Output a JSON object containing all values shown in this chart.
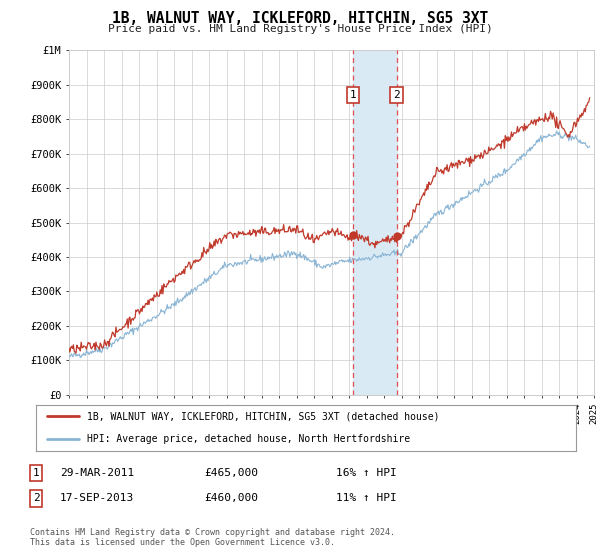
{
  "title": "1B, WALNUT WAY, ICKLEFORD, HITCHIN, SG5 3XT",
  "subtitle": "Price paid vs. HM Land Registry's House Price Index (HPI)",
  "legend_line1": "1B, WALNUT WAY, ICKLEFORD, HITCHIN, SG5 3XT (detached house)",
  "legend_line2": "HPI: Average price, detached house, North Hertfordshire",
  "sale1_date": "29-MAR-2011",
  "sale1_price": "£465,000",
  "sale1_hpi": "16% ↑ HPI",
  "sale2_date": "17-SEP-2013",
  "sale2_price": "£460,000",
  "sale2_hpi": "11% ↑ HPI",
  "footnote": "Contains HM Land Registry data © Crown copyright and database right 2024.\nThis data is licensed under the Open Government Licence v3.0.",
  "sale1_year": 2011.23,
  "sale1_value": 465000,
  "sale2_year": 2013.72,
  "sale2_value": 460000,
  "red_color": "#c0392b",
  "blue_color": "#89b4d4",
  "shade_color": "#daeaf5",
  "ylim_max": 1000000,
  "ylim_min": 0,
  "xlim_min": 1995,
  "xlim_max": 2025
}
